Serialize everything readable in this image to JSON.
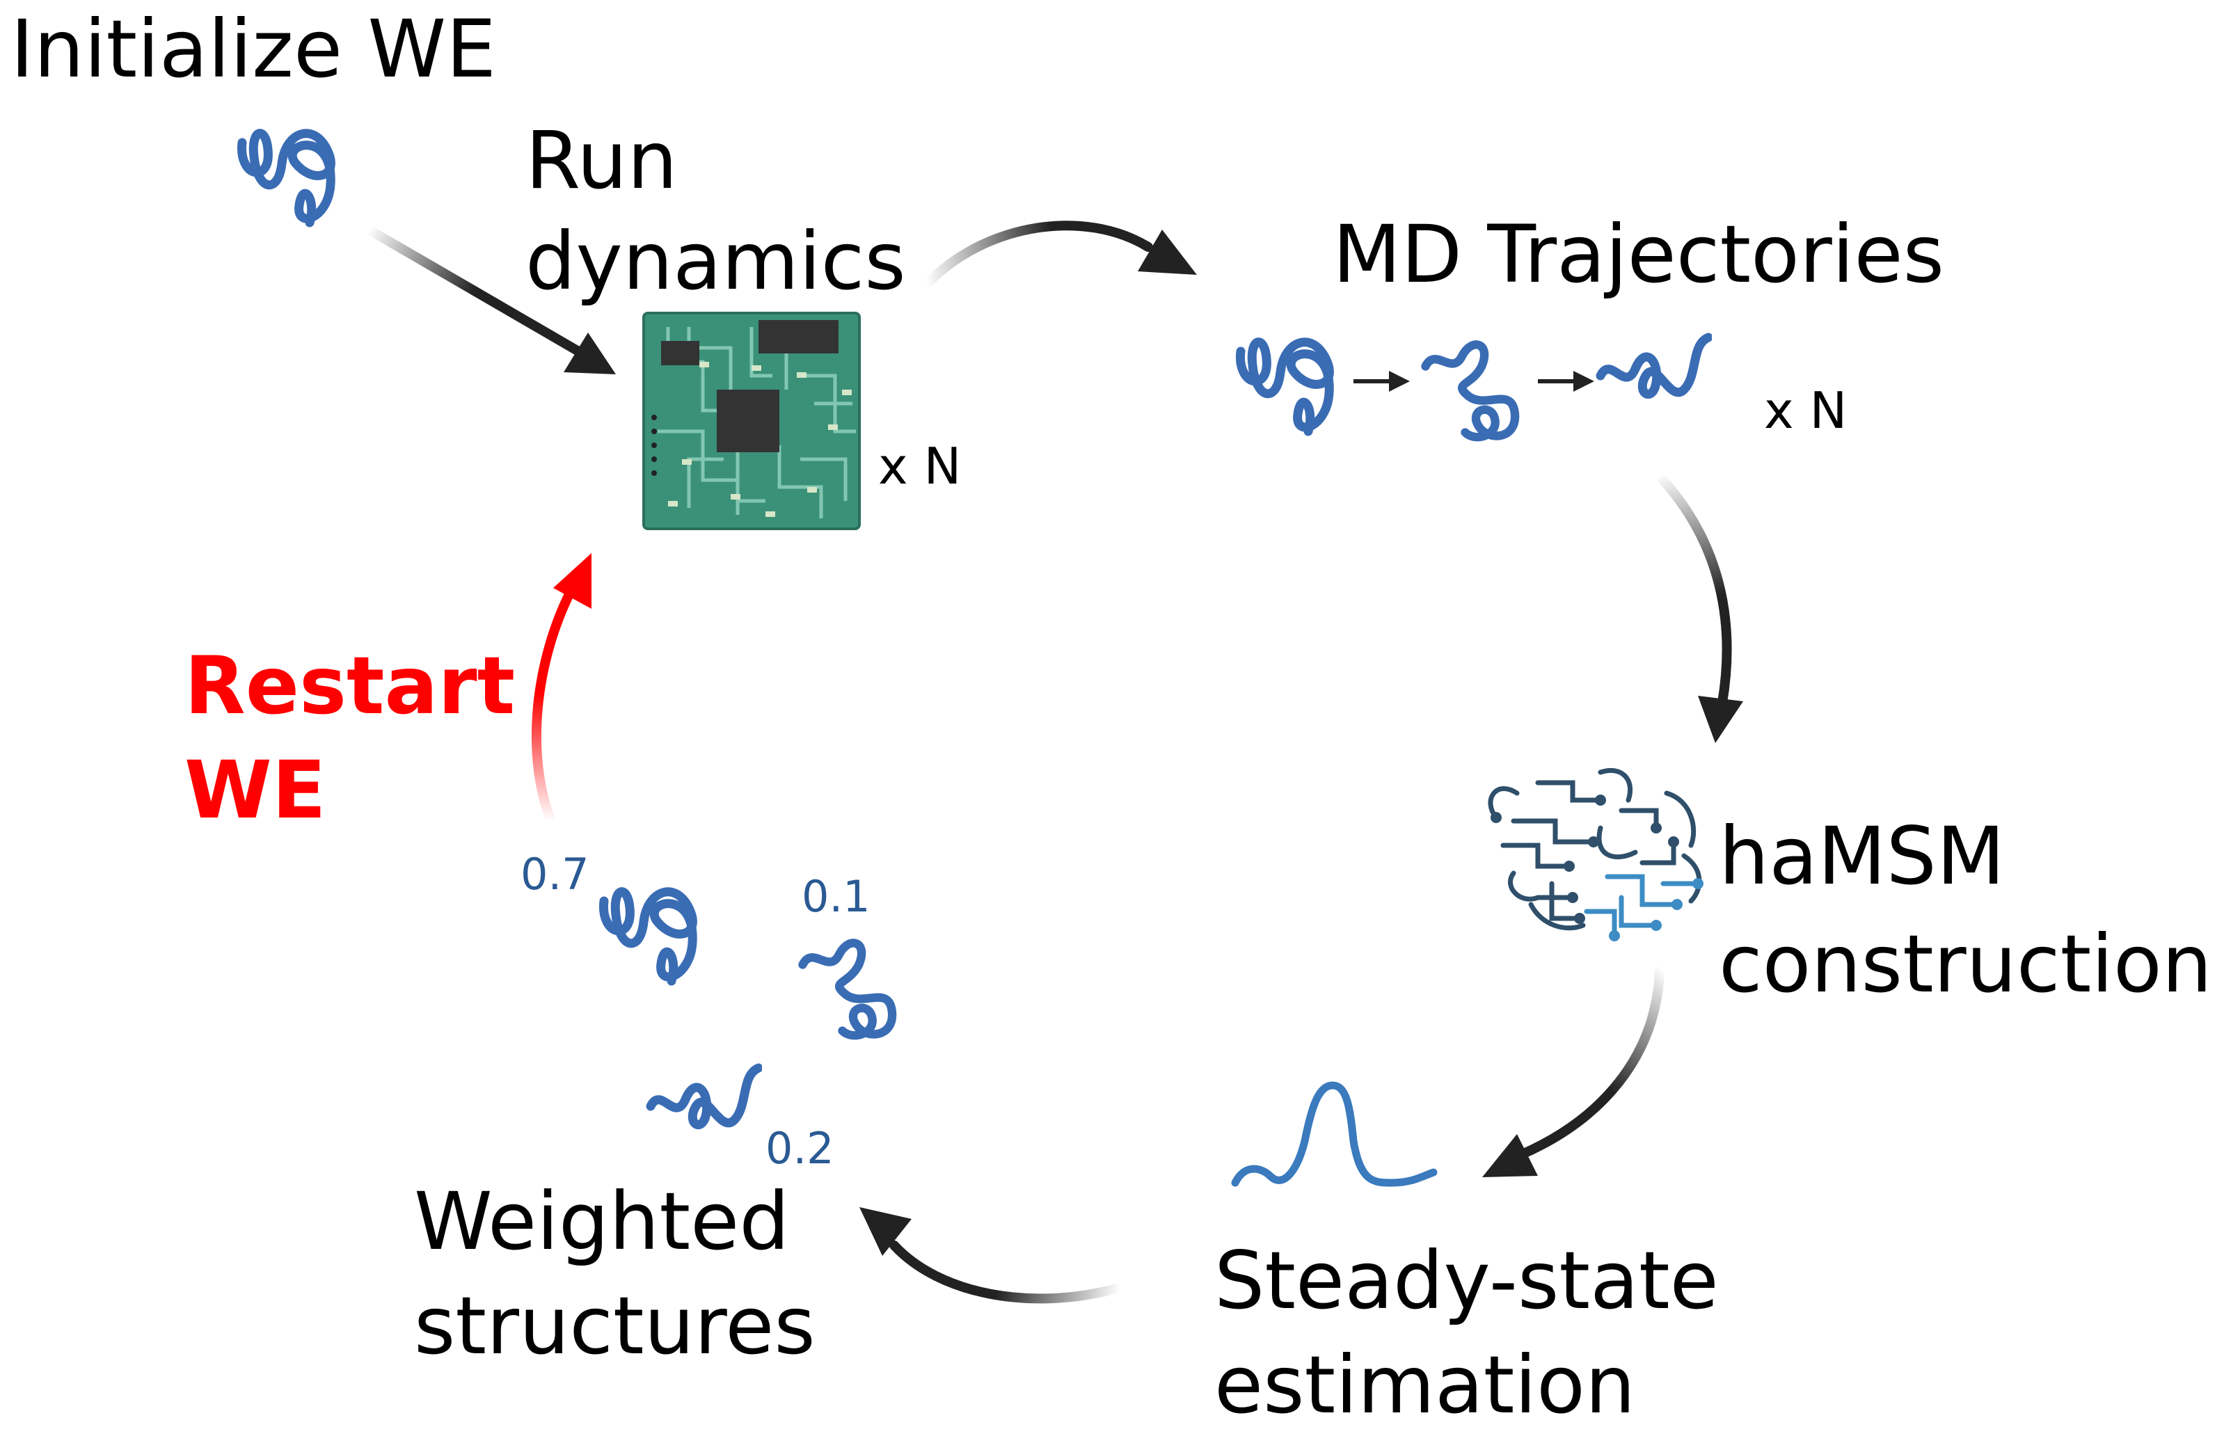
{
  "labels": {
    "initialize": "Initialize WE",
    "run_line1": "Run",
    "run_line2": "dynamics",
    "gpu_count": "x N",
    "md_traj": "MD Trajectories",
    "traj_count": "x N",
    "hamsm_line1": "haMSM",
    "hamsm_line2": "construction",
    "ss_line1": "Steady-state",
    "ss_line2": "estimation",
    "weighted_line1": "Weighted",
    "weighted_line2": "structures",
    "restart_line1": "Restart",
    "restart_line2": "WE"
  },
  "weights": {
    "w1": "0.7",
    "w2": "0.1",
    "w3": "0.2"
  },
  "colors": {
    "protein": "#3a6cb4",
    "restart": "#ff0000",
    "arrow": "#222222",
    "chip": "#3a9178",
    "weight_text": "#2a5a93"
  },
  "icons": [
    "protein-icon",
    "gpu-chip-icon",
    "brain-circuit-icon",
    "distribution-curve-icon"
  ]
}
